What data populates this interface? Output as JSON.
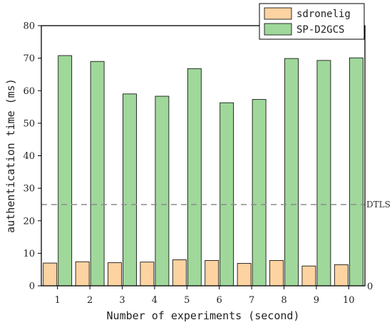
{
  "chart_data": {
    "type": "bar",
    "categories": [
      "1",
      "2",
      "3",
      "4",
      "5",
      "6",
      "7",
      "8",
      "9",
      "10"
    ],
    "series": [
      {
        "name": "sdronelig",
        "color": "#fcd3a1",
        "values": [
          7,
          7.4,
          7.1,
          7.3,
          8,
          7.8,
          6.9,
          7.8,
          6.1,
          6.5
        ]
      },
      {
        "name": "SP-D2GCS",
        "color": "#9fd89a",
        "values": [
          70.8,
          69,
          59,
          58.3,
          66.8,
          56.3,
          57.3,
          69.9,
          69.3,
          70.1
        ]
      }
    ],
    "xlabel": "Number of experiments (second)",
    "ylabel": "authentication time (ms)",
    "ylim": [
      0,
      80
    ],
    "yticks": [
      0,
      10,
      20,
      30,
      40,
      50,
      60,
      70,
      80
    ],
    "right_axis_label": "0",
    "reference_line": {
      "value": 25,
      "label": "DTLS",
      "color": "#8c8c8c"
    },
    "legend_position": "top-right",
    "grid": false
  }
}
